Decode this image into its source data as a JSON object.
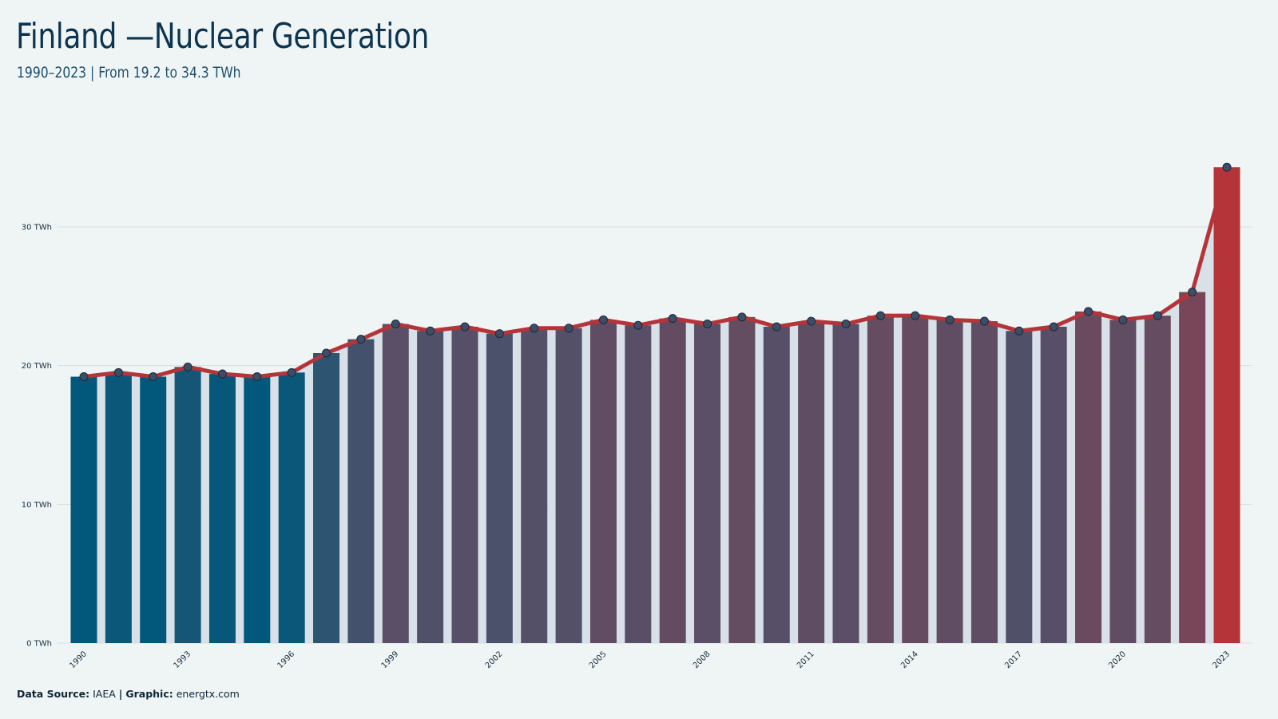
{
  "title": "Finland —Nuclear Generation",
  "subtitle": "1990–2023 | From 19.2 to 34.3 TWh",
  "footer": {
    "source_label": "Data Source:",
    "source_value": "IAEA",
    "separator": "|",
    "graphic_label": "Graphic:",
    "graphic_value": "energtx.com"
  },
  "colors": {
    "background": "#eff5f5",
    "low_bar": "#02587b",
    "mid_bar": "#5a4f66",
    "high_bar": "#b5343a",
    "line": "#b5343a",
    "marker_fill": "#3d4d66",
    "area_fill": "#d5dfe5",
    "grid": "#d9dfe2"
  },
  "chart_data": {
    "type": "bar",
    "x": [
      1990,
      1991,
      1992,
      1993,
      1994,
      1995,
      1996,
      1997,
      1998,
      1999,
      2000,
      2001,
      2002,
      2003,
      2004,
      2005,
      2006,
      2007,
      2008,
      2009,
      2010,
      2011,
      2012,
      2013,
      2014,
      2015,
      2016,
      2017,
      2018,
      2019,
      2020,
      2021,
      2022,
      2023
    ],
    "series": [
      {
        "values": [
          19.2,
          19.5,
          19.2,
          19.9,
          19.4,
          19.2,
          19.5,
          20.9,
          21.9,
          23.0,
          22.5,
          22.8,
          22.3,
          22.7,
          22.7,
          23.3,
          22.9,
          23.4,
          23.0,
          23.5,
          22.8,
          23.2,
          23.0,
          23.6,
          23.6,
          23.3,
          23.2,
          22.5,
          22.8,
          23.9,
          23.3,
          23.6,
          25.3,
          34.3
        ]
      }
    ],
    "overlay": "line with markers, shaded area under line",
    "xtick_labels": [
      "1990",
      "1993",
      "1996",
      "1999",
      "2002",
      "2005",
      "2008",
      "2011",
      "2014",
      "2017",
      "2020",
      "2023"
    ],
    "ytick_labels": [
      "0 TWh",
      "10 TWh",
      "20 TWh",
      "30 TWh"
    ],
    "yticks": [
      0,
      10,
      20,
      30
    ],
    "ylim": [
      0,
      36.1
    ],
    "grid": true,
    "legend": "none"
  }
}
